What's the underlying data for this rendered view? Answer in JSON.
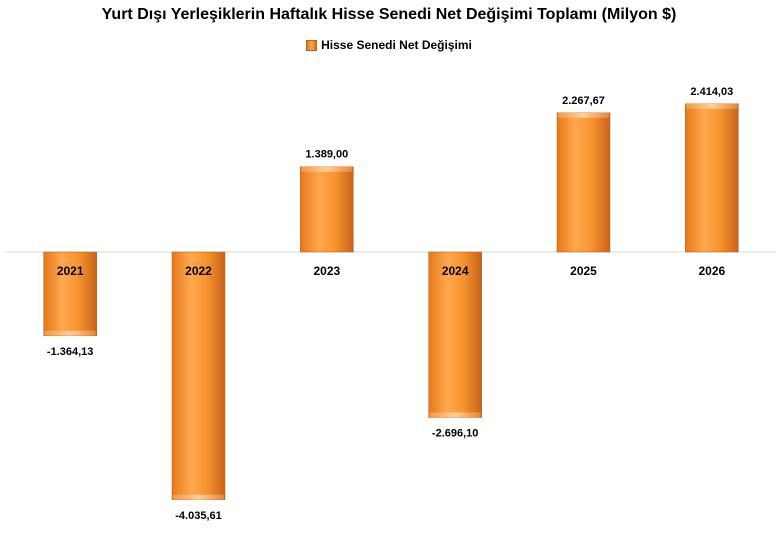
{
  "chart_data": {
    "type": "bar",
    "title": "Yurt Dışı Yerleşiklerin Haftalık Hisse Senedi Net Değişimi Toplamı (Milyon $)",
    "categories": [
      "2021",
      "2022",
      "2023",
      "2024",
      "2025",
      "2026"
    ],
    "series": [
      {
        "name": "Hisse Senedi Net Değişimi",
        "values": [
          -1364.13,
          -4035.61,
          1389.0,
          -2696.1,
          2267.67,
          2414.03
        ]
      }
    ],
    "data_labels": [
      "-1.364,13",
      "-4.035,61",
      "1.389,00",
      "-2.696,10",
      "2.267,67",
      "2.414,03"
    ],
    "ylim": [
      -4500,
      2700
    ],
    "grid": false,
    "legend_position": "top",
    "colors": {
      "bar": "#f28c28",
      "bar_light": "#ffa64d",
      "bar_dark": "#c8621a",
      "axis": "#d9d9d9"
    }
  }
}
